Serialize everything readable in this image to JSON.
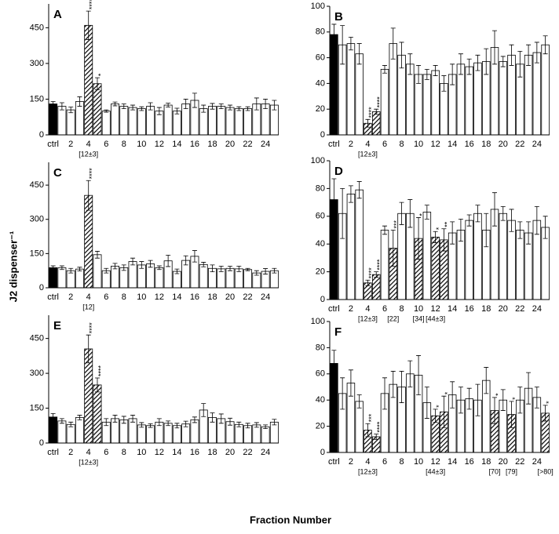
{
  "ylabel": "J2 dispenser⁻¹",
  "xlabel": "Fraction Number",
  "chart_data": [
    {
      "type": "bar",
      "title": "A",
      "categories": [
        "ctrl",
        null,
        "2",
        null,
        "4",
        null,
        "6",
        null,
        "8",
        null,
        "10",
        null,
        "12",
        null,
        "14",
        null,
        "16",
        null,
        "18",
        null,
        "20",
        null,
        "22",
        null,
        "24",
        null
      ],
      "values": [
        130,
        120,
        105,
        140,
        460,
        215,
        100,
        130,
        120,
        115,
        110,
        120,
        100,
        125,
        100,
        130,
        145,
        110,
        120,
        120,
        115,
        110,
        110,
        130,
        130,
        125
      ],
      "errors": [
        10,
        15,
        12,
        20,
        60,
        25,
        5,
        8,
        10,
        10,
        8,
        15,
        15,
        8,
        12,
        20,
        30,
        15,
        12,
        10,
        10,
        8,
        8,
        25,
        20,
        20
      ],
      "fills": [
        "#000000",
        "#ffffff",
        "#ffffff",
        "#ffffff",
        "hatch",
        "hatch",
        "#ffffff",
        "#ffffff",
        "#ffffff",
        "#ffffff",
        "#ffffff",
        "#ffffff",
        "#ffffff",
        "#ffffff",
        "#ffffff",
        "#ffffff",
        "#ffffff",
        "#ffffff",
        "#ffffff",
        "#ffffff",
        "#ffffff",
        "#ffffff",
        "#ffffff",
        "#ffffff",
        "#ffffff",
        "#ffffff"
      ],
      "stars": [
        {
          "index": 4,
          "text": "****"
        },
        {
          "index": 5,
          "text": "*"
        }
      ],
      "notes": [
        {
          "index": 4,
          "text": "[12±3]"
        }
      ],
      "ylim": [
        0,
        550
      ],
      "yticks": [
        0,
        150,
        300,
        450
      ]
    },
    {
      "type": "bar",
      "title": "B",
      "categories": [
        "ctrl",
        null,
        "2",
        null,
        "4",
        null,
        "6",
        null,
        "8",
        null,
        "10",
        null,
        "12",
        null,
        "14",
        null,
        "16",
        null,
        "18",
        null,
        "20",
        null,
        "22",
        null,
        "24",
        null
      ],
      "values": [
        78,
        70,
        71,
        63,
        9,
        18,
        51,
        71,
        62,
        55,
        47,
        47,
        50,
        40,
        47,
        55,
        53,
        56,
        57,
        68,
        57,
        62,
        55,
        62,
        64,
        70
      ],
      "errors": [
        8,
        15,
        5,
        8,
        3,
        2,
        3,
        12,
        10,
        8,
        7,
        4,
        4,
        6,
        8,
        8,
        6,
        6,
        10,
        13,
        4,
        8,
        10,
        8,
        8,
        7
      ],
      "fills": [
        "#000000",
        "#ffffff",
        "#ffffff",
        "#ffffff",
        "hatch",
        "hatch",
        "#ffffff",
        "#ffffff",
        "#ffffff",
        "#ffffff",
        "#ffffff",
        "#ffffff",
        "#ffffff",
        "#ffffff",
        "#ffffff",
        "#ffffff",
        "#ffffff",
        "#ffffff",
        "#ffffff",
        "#ffffff",
        "#ffffff",
        "#ffffff",
        "#ffffff",
        "#ffffff",
        "#ffffff",
        "#ffffff"
      ],
      "stars": [
        {
          "index": 4,
          "text": "****"
        },
        {
          "index": 5,
          "text": "****"
        }
      ],
      "notes": [
        {
          "index": 4,
          "text": "[12±3]"
        }
      ],
      "ylim": [
        0,
        100
      ],
      "yticks": [
        0,
        20,
        40,
        60,
        80,
        100
      ]
    },
    {
      "type": "bar",
      "title": "C",
      "categories": [
        "ctrl",
        null,
        "2",
        null,
        "4",
        null,
        "6",
        null,
        "8",
        null,
        "10",
        null,
        "12",
        null,
        "14",
        null,
        "16",
        null,
        "18",
        null,
        "20",
        null,
        "22",
        null,
        "24",
        null
      ],
      "values": [
        88,
        88,
        75,
        82,
        405,
        145,
        75,
        95,
        88,
        115,
        100,
        105,
        88,
        118,
        72,
        120,
        138,
        102,
        85,
        83,
        85,
        83,
        80,
        65,
        72,
        75
      ],
      "errors": [
        8,
        8,
        10,
        8,
        65,
        15,
        10,
        12,
        12,
        15,
        15,
        15,
        8,
        25,
        10,
        20,
        25,
        10,
        15,
        12,
        10,
        12,
        5,
        10,
        12,
        10
      ],
      "fills": [
        "#000000",
        "#ffffff",
        "#ffffff",
        "#ffffff",
        "hatch",
        "#ffffff",
        "#ffffff",
        "#ffffff",
        "#ffffff",
        "#ffffff",
        "#ffffff",
        "#ffffff",
        "#ffffff",
        "#ffffff",
        "#ffffff",
        "#ffffff",
        "#ffffff",
        "#ffffff",
        "#ffffff",
        "#ffffff",
        "#ffffff",
        "#ffffff",
        "#ffffff",
        "#ffffff",
        "#ffffff",
        "#ffffff"
      ],
      "stars": [
        {
          "index": 4,
          "text": "****"
        }
      ],
      "notes": [
        {
          "index": 4,
          "text": "[12]"
        }
      ],
      "ylim": [
        0,
        550
      ],
      "yticks": [
        0,
        150,
        300,
        450
      ]
    },
    {
      "type": "bar",
      "title": "D",
      "categories": [
        "ctrl",
        null,
        "2",
        null,
        "4",
        null,
        "6",
        null,
        "8",
        null,
        "10",
        null,
        "12",
        null,
        "14",
        null,
        "16",
        null,
        "18",
        null,
        "20",
        null,
        "22",
        null,
        "24",
        null
      ],
      "values": [
        72,
        62,
        76,
        79,
        12,
        18,
        50,
        37,
        62,
        62,
        44,
        63,
        45,
        43,
        48,
        50,
        57,
        62,
        50,
        65,
        62,
        57,
        50,
        48,
        57,
        52
      ],
      "errors": [
        15,
        18,
        6,
        6,
        2,
        2,
        3,
        13,
        8,
        10,
        15,
        5,
        4,
        8,
        8,
        8,
        4,
        6,
        12,
        12,
        5,
        8,
        6,
        8,
        10,
        8
      ],
      "fills": [
        "#000000",
        "#ffffff",
        "#ffffff",
        "#ffffff",
        "hatch",
        "hatch",
        "#ffffff",
        "hatch",
        "#ffffff",
        "#ffffff",
        "hatch",
        "#ffffff",
        "hatch",
        "hatch",
        "#ffffff",
        "#ffffff",
        "#ffffff",
        "#ffffff",
        "#ffffff",
        "#ffffff",
        "#ffffff",
        "#ffffff",
        "#ffffff",
        "#ffffff",
        "#ffffff",
        "#ffffff"
      ],
      "stars": [
        {
          "index": 4,
          "text": "****"
        },
        {
          "index": 5,
          "text": "****"
        },
        {
          "index": 7,
          "text": "***"
        },
        {
          "index": 10,
          "text": "*"
        },
        {
          "index": 12,
          "text": "*"
        },
        {
          "index": 13,
          "text": "**"
        }
      ],
      "notes": [
        {
          "index": 4,
          "text": "[12±3]"
        },
        {
          "index": 7,
          "text": "[22]"
        },
        {
          "index": 10,
          "text": "[34]"
        },
        {
          "index": 12,
          "text": "[44±3]"
        }
      ],
      "ylim": [
        0,
        100
      ],
      "yticks": [
        0,
        20,
        40,
        60,
        80,
        100
      ]
    },
    {
      "type": "bar",
      "title": "E",
      "categories": [
        "ctrl",
        null,
        "2",
        null,
        "4",
        null,
        "6",
        null,
        "8",
        null,
        "10",
        null,
        "12",
        null,
        "14",
        null,
        "16",
        null,
        "18",
        null,
        "20",
        null,
        "22",
        null,
        "24",
        null
      ],
      "values": [
        112,
        95,
        80,
        110,
        405,
        250,
        90,
        105,
        100,
        105,
        78,
        75,
        90,
        85,
        75,
        82,
        100,
        142,
        110,
        105,
        92,
        80,
        75,
        78,
        70,
        90
      ],
      "errors": [
        15,
        10,
        10,
        10,
        60,
        30,
        15,
        15,
        15,
        15,
        10,
        8,
        15,
        10,
        10,
        12,
        12,
        28,
        20,
        20,
        15,
        10,
        10,
        10,
        8,
        12
      ],
      "fills": [
        "#000000",
        "#ffffff",
        "#ffffff",
        "#ffffff",
        "hatch",
        "hatch",
        "#ffffff",
        "#ffffff",
        "#ffffff",
        "#ffffff",
        "#ffffff",
        "#ffffff",
        "#ffffff",
        "#ffffff",
        "#ffffff",
        "#ffffff",
        "#ffffff",
        "#ffffff",
        "#ffffff",
        "#ffffff",
        "#ffffff",
        "#ffffff",
        "#ffffff",
        "#ffffff",
        "#ffffff",
        "#ffffff"
      ],
      "stars": [
        {
          "index": 4,
          "text": "****"
        },
        {
          "index": 5,
          "text": "****"
        }
      ],
      "notes": [
        {
          "index": 4,
          "text": "[12±3]"
        }
      ],
      "ylim": [
        0,
        550
      ],
      "yticks": [
        0,
        150,
        300,
        450
      ]
    },
    {
      "type": "bar",
      "title": "F",
      "categories": [
        "ctrl",
        null,
        "2",
        null,
        "4",
        null,
        "6",
        null,
        "8",
        null,
        "10",
        null,
        "12",
        null,
        "14",
        null,
        "16",
        null,
        "18",
        null,
        "20",
        null,
        "22",
        null,
        "24",
        null
      ],
      "values": [
        68,
        45,
        53,
        39,
        17,
        12,
        45,
        52,
        50,
        60,
        59,
        38,
        28,
        31,
        44,
        40,
        41,
        40,
        55,
        32,
        40,
        29,
        40,
        49,
        42,
        30
      ],
      "errors": [
        10,
        12,
        10,
        5,
        5,
        2,
        12,
        10,
        12,
        10,
        15,
        12,
        5,
        12,
        10,
        10,
        8,
        12,
        10,
        10,
        8,
        10,
        10,
        12,
        8,
        6
      ],
      "fills": [
        "#000000",
        "#ffffff",
        "#ffffff",
        "#ffffff",
        "hatch",
        "hatch",
        "#ffffff",
        "#ffffff",
        "#ffffff",
        "#ffffff",
        "#ffffff",
        "#ffffff",
        "hatch",
        "hatch",
        "#ffffff",
        "#ffffff",
        "#ffffff",
        "#ffffff",
        "#ffffff",
        "hatch",
        "#ffffff",
        "hatch",
        "#ffffff",
        "#ffffff",
        "#ffffff",
        "hatch"
      ],
      "stars": [
        {
          "index": 4,
          "text": "***"
        },
        {
          "index": 5,
          "text": "****"
        },
        {
          "index": 12,
          "text": "*"
        },
        {
          "index": 13,
          "text": "*"
        },
        {
          "index": 19,
          "text": "*"
        },
        {
          "index": 21,
          "text": "*"
        },
        {
          "index": 25,
          "text": "*"
        }
      ],
      "notes": [
        {
          "index": 4,
          "text": "[12±3]"
        },
        {
          "index": 12,
          "text": "[44±3]"
        },
        {
          "index": 19,
          "text": "[70]"
        },
        {
          "index": 21,
          "text": "[79]"
        },
        {
          "index": 25,
          "text": "[>80]"
        }
      ],
      "ylim": [
        0,
        100
      ],
      "yticks": [
        0,
        20,
        40,
        60,
        80,
        100
      ]
    }
  ]
}
